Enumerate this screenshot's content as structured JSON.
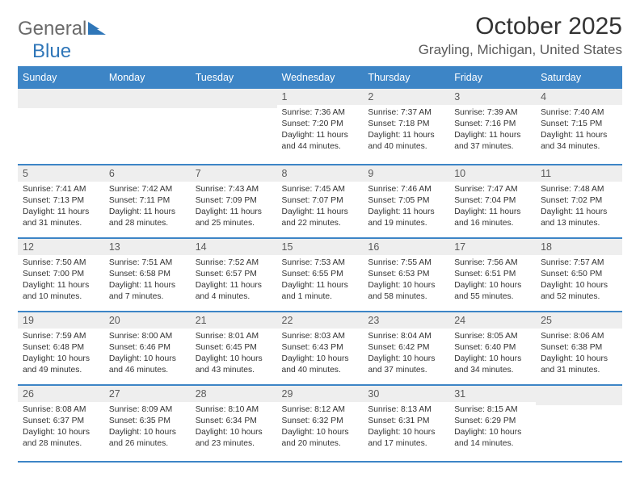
{
  "brand": {
    "part1": "General",
    "part2": "Blue",
    "color_general": "#6b6b6b",
    "color_blue": "#2f76b8",
    "icon_fill": "#2f76b8"
  },
  "header": {
    "month_title": "October 2025",
    "location": "Grayling, Michigan, United States"
  },
  "style": {
    "header_bg": "#3d85c6",
    "header_text": "#ffffff",
    "daynum_bg": "#eeeeee",
    "daynum_text": "#5a5a5a",
    "body_text": "#333333",
    "page_bg": "#ffffff",
    "title_fontsize": 30,
    "location_fontsize": 17,
    "weekday_fontsize": 12.5,
    "daytext_fontsize": 10.3
  },
  "calendar": {
    "weekdays": [
      "Sunday",
      "Monday",
      "Tuesday",
      "Wednesday",
      "Thursday",
      "Friday",
      "Saturday"
    ],
    "weeks": [
      [
        null,
        null,
        null,
        {
          "n": "1",
          "sunrise": "7:36 AM",
          "sunset": "7:20 PM",
          "dl_h": 11,
          "dl_m": 44
        },
        {
          "n": "2",
          "sunrise": "7:37 AM",
          "sunset": "7:18 PM",
          "dl_h": 11,
          "dl_m": 40
        },
        {
          "n": "3",
          "sunrise": "7:39 AM",
          "sunset": "7:16 PM",
          "dl_h": 11,
          "dl_m": 37
        },
        {
          "n": "4",
          "sunrise": "7:40 AM",
          "sunset": "7:15 PM",
          "dl_h": 11,
          "dl_m": 34
        }
      ],
      [
        {
          "n": "5",
          "sunrise": "7:41 AM",
          "sunset": "7:13 PM",
          "dl_h": 11,
          "dl_m": 31
        },
        {
          "n": "6",
          "sunrise": "7:42 AM",
          "sunset": "7:11 PM",
          "dl_h": 11,
          "dl_m": 28
        },
        {
          "n": "7",
          "sunrise": "7:43 AM",
          "sunset": "7:09 PM",
          "dl_h": 11,
          "dl_m": 25
        },
        {
          "n": "8",
          "sunrise": "7:45 AM",
          "sunset": "7:07 PM",
          "dl_h": 11,
          "dl_m": 22
        },
        {
          "n": "9",
          "sunrise": "7:46 AM",
          "sunset": "7:05 PM",
          "dl_h": 11,
          "dl_m": 19
        },
        {
          "n": "10",
          "sunrise": "7:47 AM",
          "sunset": "7:04 PM",
          "dl_h": 11,
          "dl_m": 16
        },
        {
          "n": "11",
          "sunrise": "7:48 AM",
          "sunset": "7:02 PM",
          "dl_h": 11,
          "dl_m": 13
        }
      ],
      [
        {
          "n": "12",
          "sunrise": "7:50 AM",
          "sunset": "7:00 PM",
          "dl_h": 11,
          "dl_m": 10
        },
        {
          "n": "13",
          "sunrise": "7:51 AM",
          "sunset": "6:58 PM",
          "dl_h": 11,
          "dl_m": 7
        },
        {
          "n": "14",
          "sunrise": "7:52 AM",
          "sunset": "6:57 PM",
          "dl_h": 11,
          "dl_m": 4
        },
        {
          "n": "15",
          "sunrise": "7:53 AM",
          "sunset": "6:55 PM",
          "dl_h": 11,
          "dl_m": 1
        },
        {
          "n": "16",
          "sunrise": "7:55 AM",
          "sunset": "6:53 PM",
          "dl_h": 10,
          "dl_m": 58
        },
        {
          "n": "17",
          "sunrise": "7:56 AM",
          "sunset": "6:51 PM",
          "dl_h": 10,
          "dl_m": 55
        },
        {
          "n": "18",
          "sunrise": "7:57 AM",
          "sunset": "6:50 PM",
          "dl_h": 10,
          "dl_m": 52
        }
      ],
      [
        {
          "n": "19",
          "sunrise": "7:59 AM",
          "sunset": "6:48 PM",
          "dl_h": 10,
          "dl_m": 49
        },
        {
          "n": "20",
          "sunrise": "8:00 AM",
          "sunset": "6:46 PM",
          "dl_h": 10,
          "dl_m": 46
        },
        {
          "n": "21",
          "sunrise": "8:01 AM",
          "sunset": "6:45 PM",
          "dl_h": 10,
          "dl_m": 43
        },
        {
          "n": "22",
          "sunrise": "8:03 AM",
          "sunset": "6:43 PM",
          "dl_h": 10,
          "dl_m": 40
        },
        {
          "n": "23",
          "sunrise": "8:04 AM",
          "sunset": "6:42 PM",
          "dl_h": 10,
          "dl_m": 37
        },
        {
          "n": "24",
          "sunrise": "8:05 AM",
          "sunset": "6:40 PM",
          "dl_h": 10,
          "dl_m": 34
        },
        {
          "n": "25",
          "sunrise": "8:06 AM",
          "sunset": "6:38 PM",
          "dl_h": 10,
          "dl_m": 31
        }
      ],
      [
        {
          "n": "26",
          "sunrise": "8:08 AM",
          "sunset": "6:37 PM",
          "dl_h": 10,
          "dl_m": 28
        },
        {
          "n": "27",
          "sunrise": "8:09 AM",
          "sunset": "6:35 PM",
          "dl_h": 10,
          "dl_m": 26
        },
        {
          "n": "28",
          "sunrise": "8:10 AM",
          "sunset": "6:34 PM",
          "dl_h": 10,
          "dl_m": 23
        },
        {
          "n": "29",
          "sunrise": "8:12 AM",
          "sunset": "6:32 PM",
          "dl_h": 10,
          "dl_m": 20
        },
        {
          "n": "30",
          "sunrise": "8:13 AM",
          "sunset": "6:31 PM",
          "dl_h": 10,
          "dl_m": 17
        },
        {
          "n": "31",
          "sunrise": "8:15 AM",
          "sunset": "6:29 PM",
          "dl_h": 10,
          "dl_m": 14
        },
        null
      ]
    ]
  },
  "labels": {
    "sunrise_prefix": "Sunrise: ",
    "sunset_prefix": "Sunset: ",
    "daylight_prefix": "Daylight: ",
    "hours_word": " hours",
    "minutes_word": " minutes.",
    "minute_word_singular": " minute.",
    "and_word": "and "
  }
}
